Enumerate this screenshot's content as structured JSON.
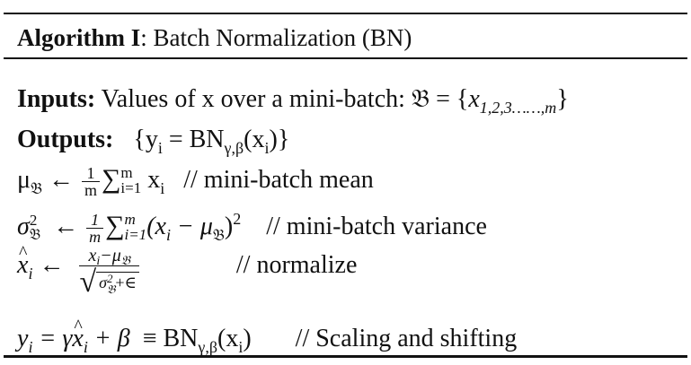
{
  "title": {
    "bold": "Algorithm I",
    "rest": ": Batch Normalization (BN)"
  },
  "inputs": {
    "label": "Inputs:",
    "text": " Values of x over a mini-batch: ",
    "math_set": "𝔅",
    "math_eq": " = {",
    "math_x": "x",
    "math_sub": "1,2,3……,m",
    "math_close": "}"
  },
  "outputs": {
    "label": "Outputs:",
    "open": "{y",
    "sub_i": "i",
    "eq": " = BN",
    "sub_gb": "γ,β",
    "arg": "(x",
    "arg_close": ")}"
  },
  "mean": {
    "mu": "μ",
    "sub_set": "𝔅",
    "arrow": " ← ",
    "num": "1",
    "den": "m",
    "sigma": "∑",
    "sup": "m",
    "sub": "i=1",
    "x": " x",
    "x_sub": "i",
    "comment": "   // mini-batch mean"
  },
  "variance": {
    "sigma_sym": "σ",
    "sup": "2",
    "sub_set": "𝔅",
    "arrow": "  ← ",
    "num": "1",
    "den": "m",
    "sum": "∑",
    "sum_sup": "m",
    "sum_sub": "i=1",
    "expr_open": "(x",
    "x_sub": "i",
    "minus": " − μ",
    "mu_sub": "𝔅",
    "expr_close": ")",
    "expr_sup": "2",
    "comment": "    // mini-batch variance"
  },
  "normalize": {
    "x": "x",
    "x_sub": "i",
    "arrow": " ← ",
    "num_x": "x",
    "num_sub": "i",
    "num_minus": "−μ",
    "num_mu_sub": "𝔅",
    "radical": "√",
    "den_sigma": "σ",
    "den_sup": "2",
    "den_sub": "𝔅",
    "den_plus": "+∈",
    "comment": "// normalize"
  },
  "scale": {
    "y": "y",
    "y_sub": "i",
    "eq": " = γ",
    "xhat": "x",
    "xhat_sub": "i",
    "plus": " + β",
    "equiv": "  ≡ BN",
    "bn_sub": "γ,β",
    "arg": "(x",
    "arg_sub": "i",
    "arg_close": ")",
    "comment": "       // Scaling and shifting"
  }
}
